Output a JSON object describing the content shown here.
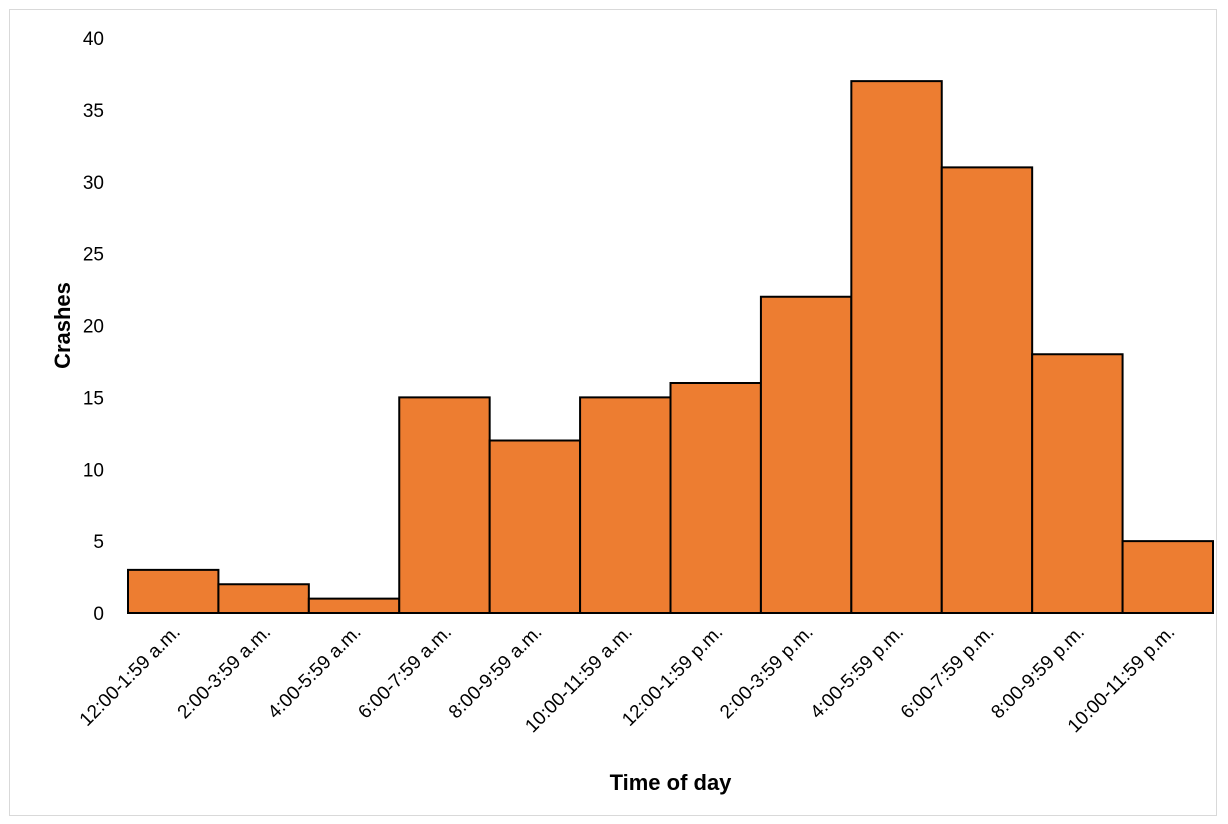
{
  "chart_data": {
    "type": "bar",
    "title": "",
    "xlabel": "Time of day",
    "ylabel": "Crashes",
    "categories": [
      "12:00-1:59 a.m.",
      "2:00-3:59 a.m.",
      "4:00-5:59 a.m.",
      "6:00-7:59 a.m.",
      "8:00-9:59 a.m.",
      "10:00-11:59 a.m.",
      "12:00-1:59 p.m.",
      "2:00-3:59 p.m.",
      "4:00-5:59 p.m.",
      "6:00-7:59 p.m.",
      "8:00-9:59 p.m.",
      "10:00-11:59 p.m."
    ],
    "values": [
      3,
      2,
      1,
      15,
      12,
      15,
      16,
      22,
      37,
      31,
      18,
      5
    ],
    "ylim": [
      0,
      40
    ],
    "yticks": [
      0,
      5,
      10,
      15,
      20,
      25,
      30,
      35,
      40
    ],
    "grid": false,
    "legend": "none",
    "bar_color": "#ED7D31",
    "bar_edge_color": "#000000"
  }
}
